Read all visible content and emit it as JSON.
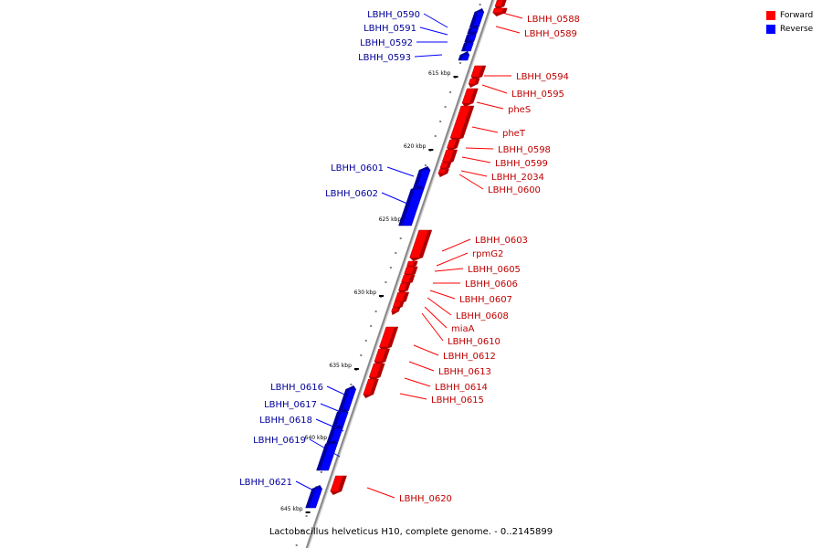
{
  "title": "Lactobacillus helveticus H10, complete genome. - 0..2145899",
  "legend": {
    "forward_label": "Forward",
    "reverse_label": "Reverse",
    "forward_color": "#ff0000",
    "reverse_color": "#0000ff"
  },
  "colors": {
    "forward": "#ff0000",
    "forward_dark": "#b00000",
    "reverse": "#0000ff",
    "reverse_dark": "#0000a0",
    "backbone": "#888888",
    "forward_label": "#c00000",
    "reverse_label": "#000099"
  },
  "ticks": [
    "615 kbp",
    "620 kbp",
    "625 kbp",
    "630 kbp",
    "635 kbp",
    "640 kbp",
    "645 kbp"
  ],
  "forward_genes": [
    "LBHH_0588",
    "LBHH_0589",
    "LBHH_0594",
    "LBHH_0595",
    "pheS",
    "pheT",
    "LBHH_0598",
    "LBHH_0599",
    "LBHH_2034",
    "LBHH_0600",
    "LBHH_0603",
    "rpmG2",
    "LBHH_0605",
    "LBHH_0606",
    "LBHH_0607",
    "LBHH_0608",
    "miaA",
    "LBHH_0610",
    "LBHH_0612",
    "LBHH_0613",
    "LBHH_0614",
    "LBHH_0615",
    "LBHH_0620"
  ],
  "reverse_genes": [
    "LBHH_0590",
    "LBHH_0591",
    "LBHH_0592",
    "LBHH_0593",
    "LBHH_0601",
    "LBHH_0602",
    "LBHH_0616",
    "LBHH_0617",
    "LBHH_0618",
    "LBHH_0619",
    "LBHH_0621"
  ]
}
